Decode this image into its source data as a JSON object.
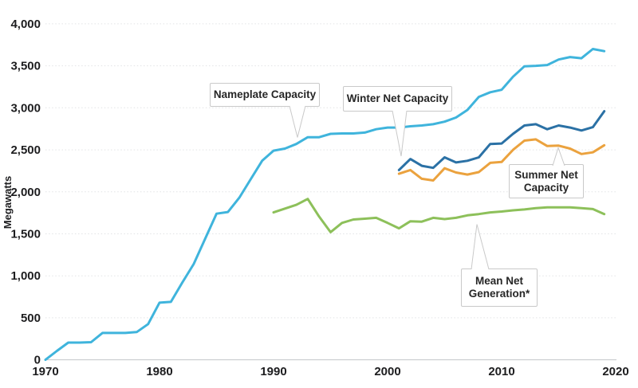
{
  "chart_data": {
    "type": "line",
    "title": "",
    "xlabel": "",
    "ylabel": "Megawatts",
    "x_range": [
      1970,
      2020
    ],
    "y_range": [
      0,
      4000
    ],
    "grid": true,
    "legend_position": "inline-callouts",
    "x_ticks": [
      {
        "label": "1970",
        "year": 1970
      },
      {
        "label": "1980",
        "year": 1980
      },
      {
        "label": "1990",
        "year": 1990
      },
      {
        "label": "2000",
        "year": 2000
      },
      {
        "label": "2010",
        "year": 2010
      },
      {
        "label": "2020",
        "year": 2020
      }
    ],
    "y_ticks": [
      {
        "label": "0",
        "value": 0
      },
      {
        "label": "500",
        "value": 500
      },
      {
        "label": "1,000",
        "value": 1000
      },
      {
        "label": "1,500",
        "value": 1500
      },
      {
        "label": "2,000",
        "value": 2000
      },
      {
        "label": "2,500",
        "value": 2500
      },
      {
        "label": "3,000",
        "value": 3000
      },
      {
        "label": "3,500",
        "value": 3500
      },
      {
        "label": "4,000",
        "value": 4000
      }
    ],
    "series": [
      {
        "id": "nameplate",
        "name": "Nameplate Capacity",
        "color": "#3fb4dc",
        "start_year": 1970,
        "values": [
          0,
          105,
          205,
          205,
          210,
          320,
          320,
          320,
          330,
          425,
          680,
          690,
          920,
          1140,
          1440,
          1740,
          1760,
          1930,
          2150,
          2370,
          2490,
          2515,
          2570,
          2650,
          2650,
          2690,
          2695,
          2695,
          2705,
          2745,
          2765,
          2765,
          2780,
          2790,
          2805,
          2835,
          2885,
          2975,
          3130,
          3185,
          3215,
          3370,
          3495,
          3500,
          3510,
          3575,
          3605,
          3590,
          3700,
          3675
        ]
      },
      {
        "id": "winter",
        "name": "Winter Net Capacity",
        "color": "#2b71a5",
        "start_year": 2001,
        "values": [
          2260,
          2390,
          2310,
          2285,
          2410,
          2350,
          2370,
          2410,
          2570,
          2575,
          2690,
          2790,
          2805,
          2745,
          2790,
          2765,
          2730,
          2770,
          2960
        ]
      },
      {
        "id": "summer",
        "name": "Summer Net Capacity",
        "color": "#eba23e",
        "start_year": 2001,
        "values": [
          2215,
          2260,
          2155,
          2135,
          2280,
          2230,
          2205,
          2235,
          2345,
          2355,
          2500,
          2610,
          2625,
          2545,
          2550,
          2515,
          2450,
          2470,
          2555
        ]
      },
      {
        "id": "mean",
        "name": "Mean Net Generation*",
        "color": "#8dc05a",
        "start_year": 1990,
        "values": [
          1755,
          1800,
          1845,
          1915,
          1705,
          1520,
          1630,
          1670,
          1680,
          1690,
          1630,
          1565,
          1650,
          1645,
          1690,
          1675,
          1690,
          1720,
          1735,
          1755,
          1765,
          1780,
          1790,
          1805,
          1815,
          1815,
          1815,
          1805,
          1795,
          1735
        ]
      }
    ],
    "annotations": [
      {
        "id": "nameplate",
        "label": "Nameplate Capacity",
        "target_series": "nameplate",
        "target_year": 1992
      },
      {
        "id": "winter",
        "label": "Winter Net Capacity",
        "target_series": "winter",
        "target_year": 2001
      },
      {
        "id": "summer",
        "label": "Summer Net Capacity",
        "target_series": "summer",
        "target_year": 2015
      },
      {
        "id": "mean",
        "label": "Mean Net Generation*",
        "target_series": "mean",
        "target_year": 2008
      }
    ]
  }
}
